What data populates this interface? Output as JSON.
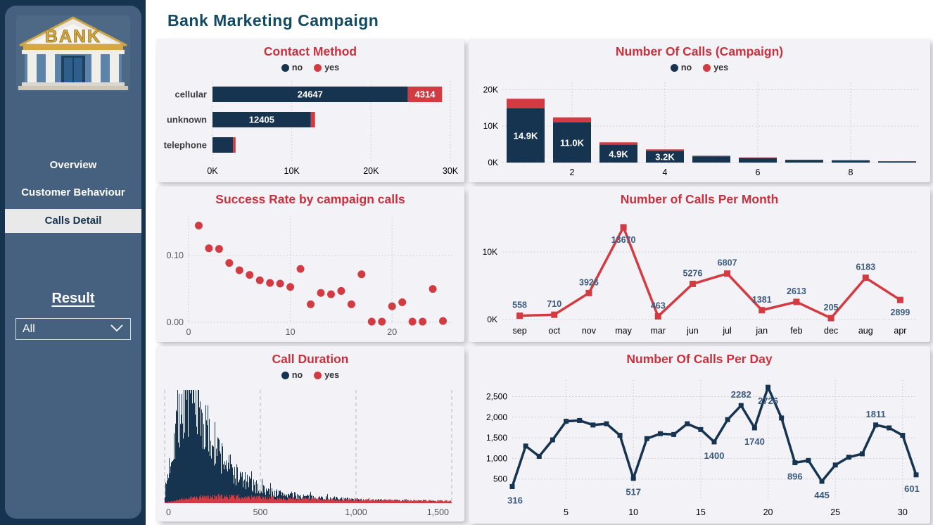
{
  "page": {
    "title": "Bank Marketing Campaign"
  },
  "colors": {
    "navy": "#16334F",
    "red": "#D23B41",
    "title_red": "#C9313C",
    "sidebar_bg": "#45617F",
    "sidebar_rail": "#16334F",
    "card_bg": "#F2F2F7",
    "data_label": "#3C5A7D",
    "axis_text": "#6E6E73",
    "grid": "#C6C6D0",
    "active_item_bg": "#E9E9E9",
    "page_title": "#124A63",
    "gold": "#D7A93C"
  },
  "sidebar": {
    "logo_text": "BANK",
    "items": [
      {
        "label": "Overview",
        "active": false
      },
      {
        "label": "Customer Behaviour",
        "active": false
      },
      {
        "label": "Calls Detail",
        "active": true
      }
    ],
    "filter": {
      "label": "Result",
      "value": "All"
    }
  },
  "chart_data": [
    {
      "id": "contact-method",
      "type": "bar",
      "orientation": "horizontal",
      "title": "Contact Method",
      "legend": [
        "no",
        "yes"
      ],
      "legend_position": "top",
      "categories": [
        "cellular",
        "unknown",
        "telephone"
      ],
      "series": [
        {
          "name": "no",
          "values": [
            24647,
            12405,
            2600
          ]
        },
        {
          "name": "yes",
          "values": [
            4314,
            530,
            310
          ]
        }
      ],
      "show_labels": {
        "no": [
          true,
          true,
          false
        ],
        "yes": [
          true,
          false,
          false
        ]
      },
      "x_ticks": [
        {
          "v": 0,
          "label": "0K"
        },
        {
          "v": 10000,
          "label": "10K"
        },
        {
          "v": 20000,
          "label": "20K"
        },
        {
          "v": 30000,
          "label": "30K"
        }
      ],
      "xlim": [
        0,
        30000
      ]
    },
    {
      "id": "calls-campaign",
      "type": "bar",
      "orientation": "vertical",
      "title": "Number Of Calls (Campaign)",
      "legend": [
        "no",
        "yes"
      ],
      "legend_position": "top",
      "x": [
        1,
        2,
        3,
        4,
        5,
        6,
        7,
        8,
        9
      ],
      "series": [
        {
          "name": "no",
          "values": [
            14900,
            11000,
            4900,
            3200,
            1700,
            1250,
            700,
            580,
            330
          ]
        },
        {
          "name": "yes",
          "values": [
            2600,
            1400,
            650,
            420,
            200,
            150,
            90,
            70,
            40
          ]
        }
      ],
      "bar_labels": [
        "14.9K",
        "11.0K",
        "4.9K",
        "3.2K",
        "",
        "",
        "",
        "",
        ""
      ],
      "y_ticks": [
        {
          "v": 0,
          "label": "0K"
        },
        {
          "v": 10000,
          "label": "10K"
        },
        {
          "v": 20000,
          "label": "20K"
        }
      ],
      "x_ticks": [
        2,
        4,
        6,
        8
      ],
      "ylim": [
        0,
        22000
      ]
    },
    {
      "id": "success-rate",
      "type": "scatter",
      "title": "Success Rate by campaign calls",
      "points": [
        [
          1,
          0.145
        ],
        [
          2,
          0.111
        ],
        [
          3,
          0.11
        ],
        [
          4,
          0.089
        ],
        [
          5,
          0.078
        ],
        [
          6,
          0.071
        ],
        [
          7,
          0.063
        ],
        [
          8,
          0.059
        ],
        [
          9,
          0.058
        ],
        [
          10,
          0.053
        ],
        [
          11,
          0.08
        ],
        [
          12,
          0.027
        ],
        [
          13,
          0.044
        ],
        [
          14,
          0.042
        ],
        [
          15,
          0.047
        ],
        [
          16,
          0.027
        ],
        [
          17,
          0.072
        ],
        [
          18,
          0.001
        ],
        [
          19,
          0.001
        ],
        [
          20,
          0.024
        ],
        [
          21,
          0.03
        ],
        [
          22,
          0.001
        ],
        [
          23,
          0.001
        ],
        [
          24,
          0.05
        ],
        [
          25,
          0.002
        ]
      ],
      "y_ticks": [
        {
          "v": 0,
          "label": "0.00"
        },
        {
          "v": 0.1,
          "label": "0.10"
        }
      ],
      "x_ticks": [
        {
          "v": 0,
          "label": "0"
        },
        {
          "v": 10,
          "label": "10"
        },
        {
          "v": 20,
          "label": "20"
        }
      ],
      "xlim": [
        0,
        26
      ],
      "ylim": [
        0,
        0.155
      ]
    },
    {
      "id": "calls-per-month",
      "type": "line",
      "title": "Number of Calls Per Month",
      "categories": [
        "sep",
        "oct",
        "nov",
        "may",
        "mar",
        "jun",
        "jul",
        "jan",
        "feb",
        "dec",
        "aug",
        "apr"
      ],
      "values": [
        558,
        710,
        3926,
        13670,
        463,
        5276,
        6807,
        1381,
        2613,
        205,
        6183,
        2899
      ],
      "label_positions": [
        "above",
        "above",
        "above",
        "below",
        "above",
        "above",
        "above",
        "above",
        "above",
        "above",
        "above",
        "below"
      ],
      "y_ticks": [
        {
          "v": 0,
          "label": "0K"
        },
        {
          "v": 10000,
          "label": "10K"
        }
      ],
      "ylim": [
        0,
        14500
      ]
    },
    {
      "id": "call-duration",
      "type": "histogram",
      "title": "Call Duration",
      "legend": [
        "no",
        "yes"
      ],
      "legend_position": "top",
      "xlim": [
        0,
        1500
      ],
      "x_ticks": [
        {
          "v": 0,
          "label": "0"
        },
        {
          "v": 500,
          "label": "500"
        },
        {
          "v": 1000,
          "label": "1,000"
        },
        {
          "v": 1500,
          "label": "1,500"
        }
      ],
      "series": [
        {
          "name": "no",
          "envelope": [
            [
              0,
              0.1
            ],
            [
              30,
              0.45
            ],
            [
              60,
              0.8
            ],
            [
              100,
              0.95
            ],
            [
              130,
              1.0
            ],
            [
              160,
              0.92
            ],
            [
              200,
              0.78
            ],
            [
              240,
              0.62
            ],
            [
              280,
              0.5
            ],
            [
              320,
              0.4
            ],
            [
              360,
              0.3
            ],
            [
              400,
              0.24
            ],
            [
              450,
              0.18
            ],
            [
              500,
              0.14
            ],
            [
              550,
              0.11
            ],
            [
              600,
              0.095
            ],
            [
              700,
              0.07
            ],
            [
              800,
              0.055
            ],
            [
              900,
              0.045
            ],
            [
              1000,
              0.035
            ],
            [
              1100,
              0.03
            ],
            [
              1200,
              0.025
            ],
            [
              1350,
              0.02
            ],
            [
              1500,
              0.015
            ]
          ]
        },
        {
          "name": "yes",
          "envelope": [
            [
              0,
              0.008
            ],
            [
              60,
              0.03
            ],
            [
              120,
              0.05
            ],
            [
              180,
              0.062
            ],
            [
              240,
              0.068
            ],
            [
              300,
              0.07
            ],
            [
              360,
              0.066
            ],
            [
              420,
              0.062
            ],
            [
              480,
              0.058
            ],
            [
              540,
              0.055
            ],
            [
              600,
              0.05
            ],
            [
              700,
              0.046
            ],
            [
              800,
              0.042
            ],
            [
              900,
              0.038
            ],
            [
              1000,
              0.034
            ],
            [
              1100,
              0.032
            ],
            [
              1200,
              0.03
            ],
            [
              1300,
              0.027
            ],
            [
              1400,
              0.025
            ],
            [
              1500,
              0.022
            ]
          ]
        }
      ]
    },
    {
      "id": "calls-per-day",
      "type": "line",
      "title": "Number Of Calls Per Day",
      "x": [
        1,
        2,
        3,
        4,
        5,
        6,
        7,
        8,
        9,
        10,
        11,
        12,
        13,
        14,
        15,
        16,
        17,
        18,
        19,
        20,
        21,
        22,
        23,
        24,
        25,
        26,
        27,
        28,
        29,
        30,
        31
      ],
      "values": [
        316,
        1300,
        1050,
        1450,
        1900,
        1920,
        1810,
        1840,
        1560,
        517,
        1480,
        1600,
        1580,
        1840,
        1700,
        1400,
        1940,
        2282,
        1740,
        2726,
        1980,
        896,
        950,
        445,
        840,
        1030,
        1110,
        1811,
        1740,
        1560,
        601
      ],
      "point_labels": [
        {
          "day": 1,
          "text": "316",
          "pos": "below"
        },
        {
          "day": 10,
          "text": "517",
          "pos": "below"
        },
        {
          "day": 16,
          "text": "1400",
          "pos": "below"
        },
        {
          "day": 18,
          "text": "2282",
          "pos": "above"
        },
        {
          "day": 19,
          "text": "1740",
          "pos": "below"
        },
        {
          "day": 20,
          "text": "2726",
          "pos": "below"
        },
        {
          "day": 22,
          "text": "896",
          "pos": "below"
        },
        {
          "day": 24,
          "text": "445",
          "pos": "below"
        },
        {
          "day": 28,
          "text": "1811",
          "pos": "above"
        },
        {
          "day": 31,
          "text": "601",
          "pos": "below"
        }
      ],
      "y_ticks": [
        {
          "v": 500,
          "label": "500"
        },
        {
          "v": 1000,
          "label": "1,000"
        },
        {
          "v": 1500,
          "label": "1,500"
        },
        {
          "v": 2000,
          "label": "2,000"
        },
        {
          "v": 2500,
          "label": "2,500"
        }
      ],
      "x_ticks": [
        5,
        10,
        15,
        20,
        25,
        30
      ],
      "ylim": [
        0,
        2900
      ]
    }
  ]
}
